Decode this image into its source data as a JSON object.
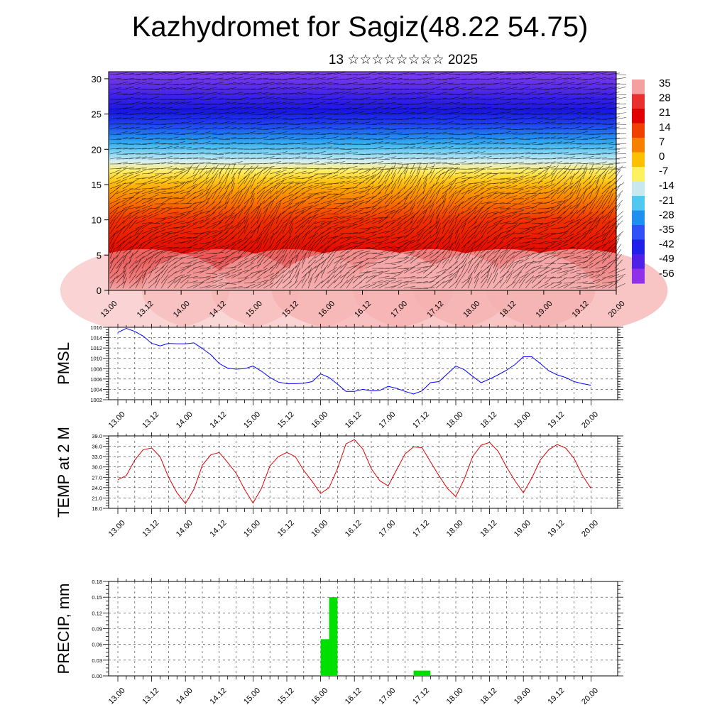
{
  "title": "Kazhydromet for Sagiz(48.22 54.75)",
  "subtitle": "13 ☆☆☆☆☆☆☆☆ 2025",
  "chart_data": [
    {
      "type": "heatmap",
      "title": "",
      "ylim": [
        0,
        31
      ],
      "y_ticks": [
        "0",
        "5",
        "10",
        "15",
        "20",
        "25",
        "30"
      ],
      "x_ticks": [
        "13.00",
        "13.12",
        "14.00",
        "14.12",
        "15.00",
        "15.12",
        "16.00",
        "16.12",
        "17.00",
        "17.12",
        "18.00",
        "18.12",
        "19.00",
        "19.12",
        "20.00"
      ],
      "colorbar_labels": [
        "35",
        "28",
        "21",
        "14",
        "7",
        "0",
        "-7",
        "-14",
        "-21",
        "-28",
        "-35",
        "-42",
        "-49",
        "-56"
      ],
      "colorbar_colors": [
        "#f4a0a0",
        "#e83030",
        "#e00000",
        "#f04000",
        "#f88000",
        "#fcc000",
        "#fff060",
        "#c8e8f0",
        "#50c8f0",
        "#2090f0",
        "#3050f8",
        "#2020e8",
        "#5020e8",
        "#9030e8"
      ],
      "overlay": "wind barbs"
    },
    {
      "type": "line",
      "ylabel": "PMSL",
      "ylim": [
        1002,
        1016
      ],
      "y_ticks": [
        "1016",
        "1014",
        "1012",
        "1010",
        "1008",
        "1006",
        "1004",
        "1002"
      ],
      "x_ticks": [
        "13.00",
        "13.12",
        "14.00",
        "14.12",
        "15.00",
        "15.12",
        "16.00",
        "16.12",
        "17.00",
        "17.12",
        "18.00",
        "18.12",
        "19.00",
        "19.12",
        "20.00"
      ],
      "color": "#0000ff",
      "x": [
        0,
        3,
        6,
        9,
        12,
        15,
        18,
        21,
        24,
        27,
        30,
        33,
        36,
        39,
        42,
        45,
        48,
        51,
        54,
        57,
        60,
        63,
        66,
        69,
        72,
        75,
        78,
        81,
        84,
        87,
        90,
        93,
        96,
        99,
        102,
        105,
        108,
        111,
        114,
        117,
        120,
        123,
        126,
        129,
        132,
        135,
        138,
        141,
        144,
        147,
        150,
        153,
        156,
        159,
        162,
        165,
        168
      ],
      "values": [
        1015,
        1015.8,
        1015.2,
        1014.3,
        1012.9,
        1012.4,
        1012.9,
        1012.8,
        1012.8,
        1013,
        1011.9,
        1010.7,
        1009,
        1008.1,
        1007.9,
        1008,
        1008.5,
        1007.5,
        1006.3,
        1005.4,
        1005.1,
        1005.1,
        1005.2,
        1005.5,
        1007,
        1006.3,
        1005,
        1003.6,
        1003.6,
        1004,
        1003.7,
        1003.8,
        1004.6,
        1004.2,
        1003.6,
        1003.1,
        1003.7,
        1005.3,
        1005.5,
        1007,
        1008.5,
        1007.8,
        1006.5,
        1005.3,
        1006,
        1006.8,
        1007.7,
        1008.8,
        1010.3,
        1010.3,
        1009,
        1007.6,
        1006.8,
        1006.3,
        1005.5,
        1005.1,
        1004.8
      ]
    },
    {
      "type": "line",
      "ylabel": "TEMP at 2 M",
      "ylim": [
        18,
        39
      ],
      "y_ticks": [
        "39.0",
        "36.0",
        "33.0",
        "30.0",
        "27.0",
        "24.0",
        "21.0",
        "18.0"
      ],
      "x_ticks": [
        "13.00",
        "13.12",
        "14.00",
        "14.12",
        "15.00",
        "15.12",
        "16.00",
        "16.12",
        "17.00",
        "17.12",
        "18.00",
        "18.12",
        "19.00",
        "19.12",
        "20.00"
      ],
      "color": "#e00000",
      "x": [
        0,
        3,
        6,
        9,
        12,
        15,
        18,
        21,
        24,
        27,
        30,
        33,
        36,
        39,
        42,
        45,
        48,
        51,
        54,
        57,
        60,
        63,
        66,
        69,
        72,
        75,
        78,
        81,
        84,
        87,
        90,
        93,
        96,
        99,
        102,
        105,
        108,
        111,
        114,
        117,
        120,
        123,
        126,
        129,
        132,
        135,
        138,
        141,
        144,
        147,
        150,
        153,
        156,
        159,
        162,
        165,
        168
      ],
      "values": [
        26.3,
        27.5,
        32,
        35,
        35.5,
        33,
        27,
        22.5,
        19.4,
        23.5,
        30.5,
        33.5,
        34.2,
        31.3,
        28.2,
        23.5,
        19.5,
        23.8,
        30.3,
        33,
        34.2,
        33,
        29,
        25.8,
        22.3,
        24,
        29.5,
        36.7,
        37.9,
        35.2,
        29.5,
        26,
        24.5,
        29.2,
        33.8,
        35.8,
        35.6,
        31.5,
        27.5,
        23.8,
        21.4,
        26.5,
        33,
        36.3,
        37.1,
        34.6,
        30,
        26,
        22.5,
        26.8,
        32,
        35,
        36.5,
        35.5,
        32.5,
        27.5,
        23.8
      ]
    },
    {
      "type": "bar",
      "ylabel": "PRECIP, mm",
      "ylim": [
        0,
        0.18
      ],
      "y_ticks": [
        "0.18",
        "0.15",
        "0.12",
        "0.09",
        "0.06",
        "0.03",
        "0.00"
      ],
      "x_ticks": [
        "13.00",
        "13.12",
        "14.00",
        "14.12",
        "15.00",
        "15.12",
        "16.00",
        "16.12",
        "17.00",
        "17.12",
        "18.00",
        "18.12",
        "19.00",
        "19.12",
        "20.00"
      ],
      "color": "#00e000",
      "x": [
        72,
        75,
        105,
        108
      ],
      "values": [
        0.07,
        0.15,
        0.01,
        0.01
      ]
    }
  ]
}
